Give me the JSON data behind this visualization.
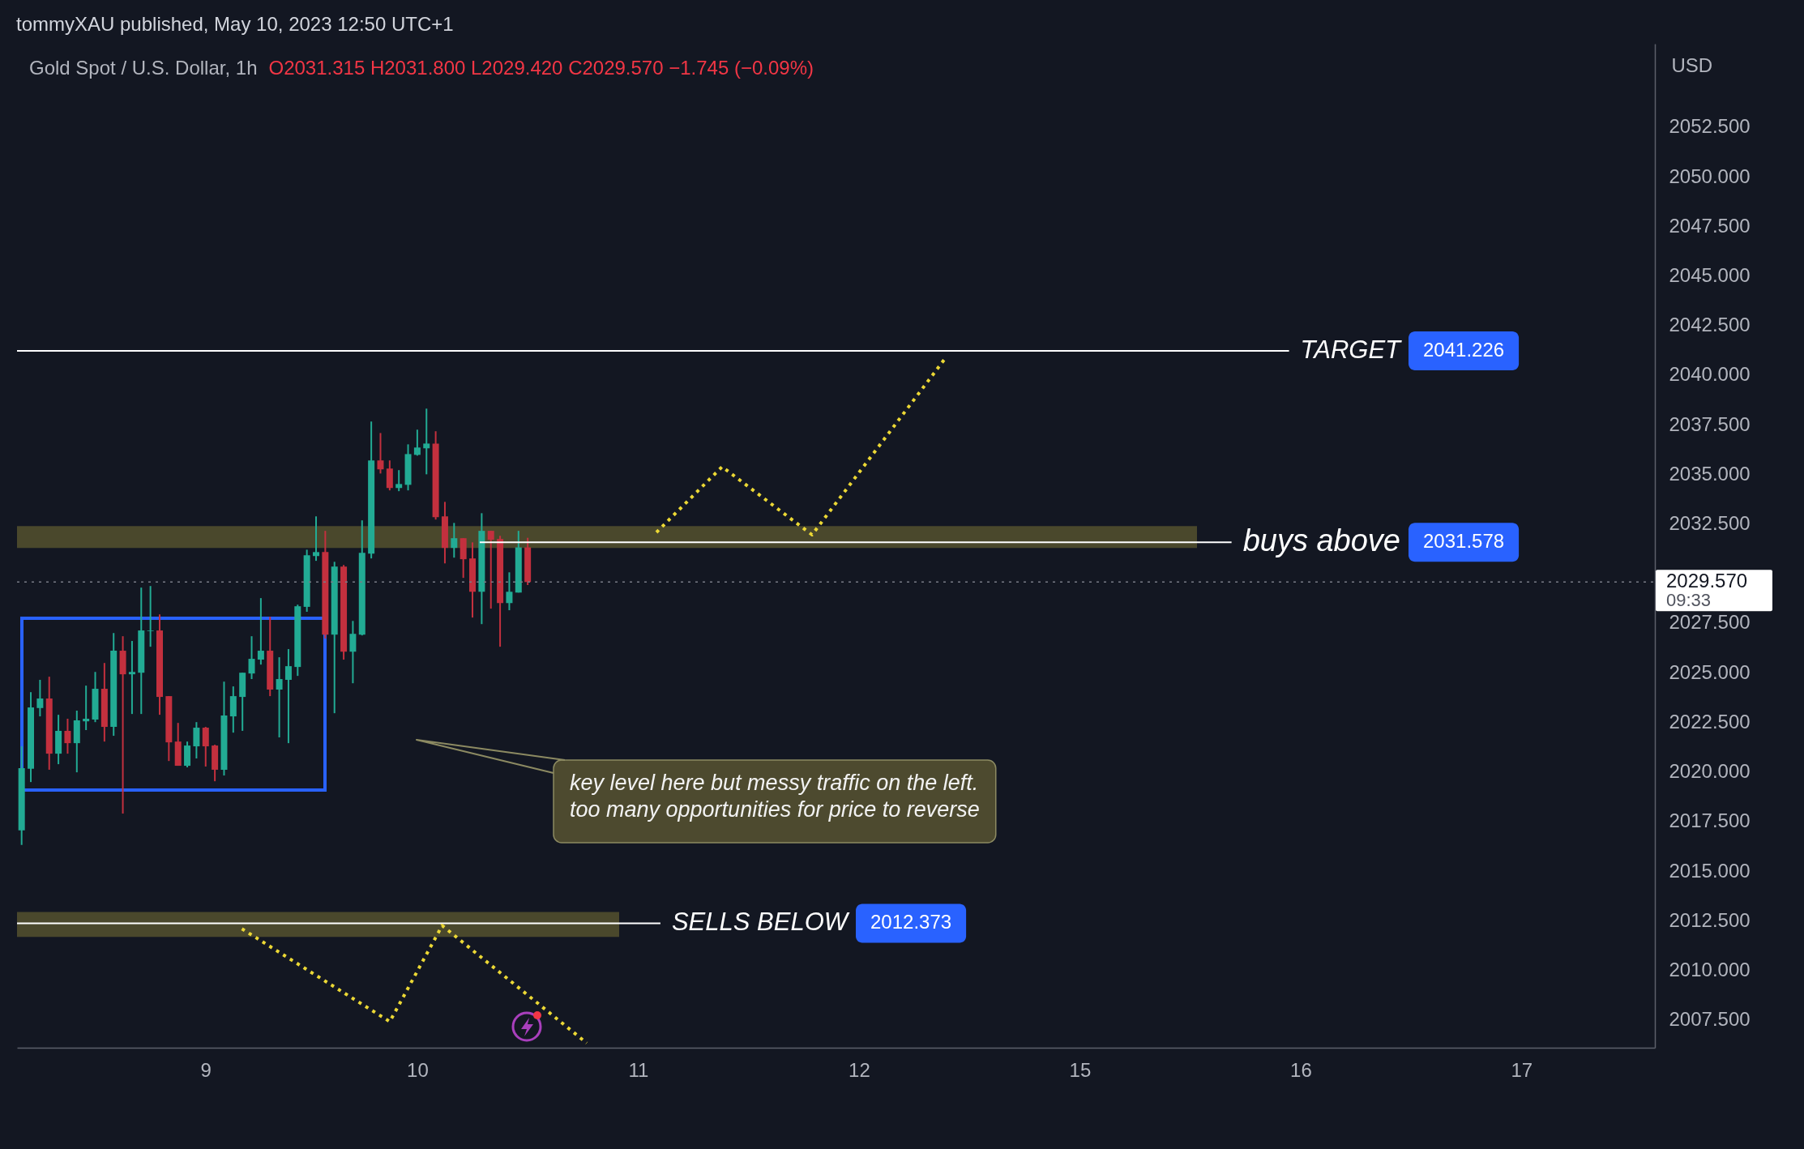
{
  "chart_data": {
    "type": "candlestick",
    "title": "tommyXAU published, May 10, 2023 12:50 UTC+1",
    "subtitle": "Gold Spot / U.S. Dollar, 1h",
    "ylabel": "USD",
    "categories": [
      null,
      null,
      null,
      null,
      null,
      null,
      null,
      null,
      null,
      null,
      null,
      null,
      null,
      null,
      null,
      null,
      null,
      null,
      null,
      null,
      "9",
      null,
      null,
      null,
      null,
      null,
      null,
      null,
      null,
      null,
      null,
      null,
      null,
      null,
      null,
      null,
      null,
      null,
      null,
      null,
      null,
      null,
      null,
      "10",
      null,
      null,
      null,
      null,
      null,
      null,
      null,
      null,
      null,
      null,
      null,
      null,
      null,
      null,
      null,
      null,
      null,
      null,
      null,
      null,
      null,
      null,
      null,
      "11",
      null,
      null,
      null,
      null,
      null,
      null,
      null,
      null,
      null,
      null,
      null,
      null,
      null,
      null,
      null,
      null,
      null,
      null,
      null,
      null,
      null,
      null,
      null,
      "12",
      null,
      null,
      null,
      null,
      null,
      null,
      null,
      null,
      null,
      null,
      null,
      null,
      null,
      null,
      null,
      null,
      null,
      null,
      null,
      null,
      null,
      null,
      null,
      "15",
      null,
      null,
      null,
      null,
      null,
      null,
      null,
      null,
      null,
      null,
      null,
      null,
      null,
      null,
      null,
      null,
      null,
      null,
      null,
      null,
      null,
      null,
      null,
      "16",
      null,
      null,
      null,
      null,
      null,
      null,
      null,
      null,
      null,
      null,
      null,
      null,
      null,
      null,
      null,
      null,
      null,
      null,
      null,
      null,
      null,
      null,
      null,
      "17",
      null,
      null,
      null,
      null,
      null,
      null,
      null,
      null,
      null,
      null,
      null,
      null,
      null,
      null
    ],
    "ohlc": [
      [
        2017.06,
        2021.29,
        2016.32,
        2020.19
      ],
      [
        2020.16,
        2024.02,
        2019.49,
        2023.25
      ],
      [
        2023.22,
        2024.64,
        2022.8,
        2023.7
      ],
      [
        2023.7,
        2024.8,
        2020.11,
        2020.92
      ],
      [
        2020.92,
        2022.88,
        2020.39,
        2022.07
      ],
      [
        2022.07,
        2022.68,
        2020.92,
        2021.45
      ],
      [
        2021.45,
        2023.09,
        2019.98,
        2022.6
      ],
      [
        2022.55,
        2024.35,
        2022.11,
        2022.68
      ],
      [
        2022.64,
        2025.04,
        2022.51,
        2024.19
      ],
      [
        2024.19,
        2025.49,
        2021.53,
        2022.27
      ],
      [
        2022.27,
        2027.0,
        2021.82,
        2026.11
      ],
      [
        2026.11,
        2026.84,
        2017.9,
        2024.92
      ],
      [
        2024.92,
        2026.6,
        2022.92,
        2025.04
      ],
      [
        2025.0,
        2029.29,
        2022.92,
        2027.13
      ],
      [
        2027.1,
        2029.37,
        2026.31,
        2027.13
      ],
      [
        2027.13,
        2027.94,
        2022.88,
        2023.78
      ],
      [
        2023.82,
        2023.82,
        2020.55,
        2021.49
      ],
      [
        2021.53,
        2022.47,
        2020.31,
        2020.31
      ],
      [
        2020.31,
        2021.53,
        2020.23,
        2021.33
      ],
      [
        2021.29,
        2022.51,
        2020.68,
        2022.23
      ],
      [
        2022.23,
        2022.27,
        2020.27,
        2021.29
      ],
      [
        2021.33,
        2021.37,
        2019.53,
        2020.11
      ],
      [
        2020.11,
        2024.55,
        2019.82,
        2022.84
      ],
      [
        2022.8,
        2024.31,
        2021.98,
        2023.82
      ],
      [
        2023.78,
        2025.0,
        2022.07,
        2025.0
      ],
      [
        2024.96,
        2026.84,
        2024.68,
        2025.7
      ],
      [
        2025.66,
        2028.76,
        2025.41,
        2026.11
      ],
      [
        2026.11,
        2027.82,
        2023.82,
        2024.15
      ],
      [
        2024.15,
        2025.78,
        2021.74,
        2024.68
      ],
      [
        2024.64,
        2026.19,
        2021.45,
        2025.33
      ],
      [
        2025.29,
        2028.43,
        2024.84,
        2028.35
      ],
      [
        2028.32,
        2031.2,
        2028.07,
        2030.92
      ],
      [
        2030.88,
        2032.88,
        2030.64,
        2031.08
      ],
      [
        2031.08,
        2032.15,
        2026.72,
        2026.92
      ],
      [
        2026.92,
        2030.59,
        2022.96,
        2030.35
      ],
      [
        2030.35,
        2030.43,
        2025.66,
        2026.06
      ],
      [
        2026.06,
        2027.61,
        2024.47,
        2026.96
      ],
      [
        2026.92,
        2032.68,
        2026.88,
        2031.04
      ],
      [
        2031.0,
        2037.66,
        2030.76,
        2035.7
      ],
      [
        2035.7,
        2037.08,
        2035.04,
        2035.25
      ],
      [
        2035.29,
        2035.7,
        2034.19,
        2034.31
      ],
      [
        2034.31,
        2035.21,
        2034.15,
        2034.51
      ],
      [
        2034.47,
        2036.51,
        2034.19,
        2036.02
      ],
      [
        2035.98,
        2037.25,
        2035.94,
        2036.35
      ],
      [
        2036.31,
        2038.31,
        2035.0,
        2036.55
      ],
      [
        2036.55,
        2037.17,
        2032.72,
        2032.84
      ],
      [
        2032.88,
        2033.61,
        2030.51,
        2031.29
      ],
      [
        2031.29,
        2032.55,
        2030.8,
        2031.78
      ],
      [
        2031.78,
        2031.78,
        2029.78,
        2030.72
      ],
      [
        2030.76,
        2031.57,
        2027.78,
        2029.08
      ],
      [
        2029.08,
        2033.04,
        2027.45,
        2032.15
      ],
      [
        2032.15,
        2032.15,
        2028.23,
        2031.7
      ],
      [
        2031.74,
        2031.9,
        2026.31,
        2028.51
      ],
      [
        2028.51,
        2030.06,
        2028.15,
        2029.08
      ],
      [
        2029.04,
        2032.15,
        2029.04,
        2031.315
      ],
      [
        2031.315,
        2031.8,
        2029.42,
        2029.57
      ],
      null,
      null,
      null,
      null,
      null,
      null,
      null,
      null,
      null,
      null,
      null,
      null,
      null,
      null,
      null,
      null,
      null,
      null,
      null,
      null,
      null,
      null,
      null,
      null,
      null,
      null,
      null,
      null,
      null,
      null,
      null,
      null,
      null,
      null,
      null,
      null,
      null,
      null,
      null,
      null,
      null,
      null,
      null,
      null,
      null,
      null,
      null,
      null,
      null,
      null,
      null,
      null,
      null,
      null,
      null,
      null,
      null,
      null,
      null,
      null,
      null,
      null,
      null,
      null,
      null,
      null,
      null,
      null,
      null,
      null,
      null,
      null,
      null,
      null,
      null,
      null,
      null,
      null,
      null,
      null,
      null,
      null,
      null,
      null,
      null,
      null,
      null,
      null,
      null,
      null,
      null,
      null,
      null,
      null,
      null,
      null,
      null,
      null,
      null,
      null,
      null,
      null,
      null,
      null,
      null,
      null,
      null,
      null,
      null,
      null,
      null,
      null,
      null,
      null,
      null,
      null,
      null,
      null,
      null,
      null,
      null,
      null
    ],
    "colors": [
      "#22ab94",
      "#22ab94",
      "#22ab94",
      "#c3303e",
      "#22ab94",
      "#c3303e",
      "#22ab94",
      "#22ab94",
      "#22ab94",
      "#c3303e",
      "#22ab94",
      "#c3303e",
      "#22ab94",
      "#22ab94",
      "#22ab94",
      "#c3303e",
      "#c3303e",
      "#c3303e",
      "#22ab94",
      "#22ab94",
      "#c3303e",
      "#c3303e",
      "#22ab94",
      "#22ab94",
      "#22ab94",
      "#22ab94",
      "#22ab94",
      "#c3303e",
      "#22ab94",
      "#22ab94",
      "#22ab94",
      "#22ab94",
      "#22ab94",
      "#c3303e",
      "#22ab94",
      "#c3303e",
      "#22ab94",
      "#22ab94",
      "#22ab94",
      "#c3303e",
      "#c3303e",
      "#22ab94",
      "#22ab94",
      "#22ab94",
      "#22ab94",
      "#c3303e",
      "#c3303e",
      "#22ab94",
      "#c3303e",
      "#c3303e",
      "#22ab94",
      "#c3303e",
      "#c3303e",
      "#22ab94",
      "#22ab94",
      "#c3303e",
      null,
      null,
      null,
      null,
      null,
      null,
      null,
      null,
      null,
      null,
      null,
      null,
      null,
      null,
      null,
      null,
      null,
      null,
      null,
      null,
      null,
      null,
      null,
      null,
      null,
      null,
      null,
      null,
      null,
      null,
      null,
      null,
      null,
      null,
      null,
      null,
      null,
      null,
      null,
      null,
      null,
      null,
      null,
      null,
      null,
      null,
      null,
      null,
      null,
      null,
      null,
      null,
      null,
      null,
      null,
      null,
      null,
      null,
      null,
      null,
      null,
      null,
      null,
      null,
      null,
      null,
      null,
      null,
      null,
      null,
      null,
      null,
      null,
      null,
      null,
      null,
      null,
      null,
      null,
      null,
      null,
      null,
      null,
      null,
      null,
      null,
      null,
      null,
      null,
      null,
      null,
      null,
      null,
      null,
      null,
      null,
      null,
      null,
      null,
      null,
      null,
      null,
      null,
      null,
      null,
      null,
      null,
      null,
      null,
      null,
      null,
      null,
      null,
      null,
      null,
      null,
      null,
      null,
      null,
      null,
      null,
      null
    ],
    "ylim": [
      2006.1,
      2056.7
    ],
    "yticks": [
      {
        "value": 2007.5,
        "label": "2007.500"
      },
      {
        "value": 2010,
        "label": "2010.000"
      },
      {
        "value": 2012.5,
        "label": "2012.500"
      },
      {
        "value": 2015,
        "label": "2015.000"
      },
      {
        "value": 2017.5,
        "label": "2017.500"
      },
      {
        "value": 2020,
        "label": "2020.000"
      },
      {
        "value": 2022.5,
        "label": "2022.500"
      },
      {
        "value": 2025,
        "label": "2025.000"
      },
      {
        "value": 2027.5,
        "label": "2027.500"
      },
      {
        "value": 2032.5,
        "label": "2032.500"
      },
      {
        "value": 2035,
        "label": "2035.000"
      },
      {
        "value": 2037.5,
        "label": "2037.500"
      },
      {
        "value": 2040,
        "label": "2040.000"
      },
      {
        "value": 2042.5,
        "label": "2042.500"
      },
      {
        "value": 2045,
        "label": "2045.000"
      },
      {
        "value": 2047.5,
        "label": "2047.500"
      },
      {
        "value": 2050,
        "label": "2050.000"
      },
      {
        "value": 2052.5,
        "label": "2052.500"
      }
    ],
    "bands": [
      {
        "axis": "y",
        "from": 2031.29,
        "to": 2032.39,
        "color": "#4a482c"
      },
      {
        "axis": "y",
        "from": 2011.68,
        "to": 2012.94,
        "color": "#4a482c"
      }
    ],
    "ref_lines": [
      {
        "axis": "y",
        "value": 2041.226,
        "label": "TARGET",
        "color": "#ffffff"
      },
      {
        "axis": "y",
        "value": 2031.578,
        "label": "buys above",
        "color": "#ffffff"
      },
      {
        "axis": "y",
        "value": 2012.373,
        "label": "SELLS BELOW",
        "color": "#ffffff"
      },
      {
        "axis": "y",
        "value": 2029.57,
        "label": "2029.570",
        "color": "#787b86",
        "line_style": "dotted"
      }
    ],
    "annotations": [
      "key level here but messy traffic on the left.\ntoo many opportunities for price to reverse",
      "O2031.315  H2031.800  L2029.420  C2029.570  −1.745 (−0.09%)",
      "2041.226",
      "2031.578",
      "2012.373",
      "09:33"
    ]
  }
}
